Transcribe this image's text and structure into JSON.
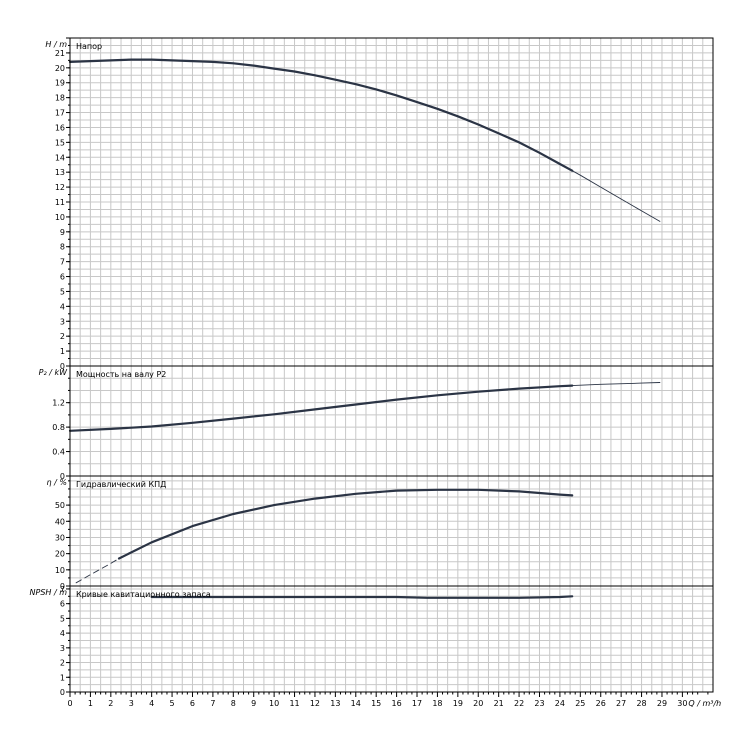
{
  "chart_data": {
    "type": "line",
    "x_axis": {
      "label": "Q / m³/h",
      "range": [
        0,
        31.5
      ],
      "tick_step": 1,
      "tick_max": 30
    },
    "colors": {
      "curve": "#2b3445",
      "grid": "#c8c8c8",
      "frame": "#000000"
    },
    "grid": true,
    "panels": [
      {
        "id": "head",
        "title": "Напор",
        "ylabel": "H / m",
        "ylim": [
          0,
          22
        ],
        "ytick_step": 1,
        "ytick_labels": [
          "0",
          "1",
          "2",
          "3",
          "4",
          "5",
          "6",
          "7",
          "8",
          "9",
          "10",
          "11",
          "12",
          "13",
          "14",
          "15",
          "16",
          "17",
          "18",
          "19",
          "20",
          "21"
        ],
        "series": [
          {
            "style": "bold",
            "x": [
              0,
              1,
              2,
              3,
              4,
              5,
              6,
              7,
              8,
              9,
              10,
              11,
              12,
              13,
              14,
              15,
              16,
              17,
              18,
              19,
              20,
              21,
              22,
              23,
              24,
              24.6
            ],
            "y": [
              20.4,
              20.45,
              20.5,
              20.55,
              20.55,
              20.5,
              20.45,
              20.4,
              20.3,
              20.15,
              19.95,
              19.75,
              19.5,
              19.2,
              18.9,
              18.55,
              18.15,
              17.7,
              17.25,
              16.75,
              16.2,
              15.6,
              15.0,
              14.3,
              13.55,
              13.1
            ]
          },
          {
            "style": "thin",
            "x": [
              24.6,
              25,
              26,
              27,
              28,
              28.9
            ],
            "y": [
              13.1,
              12.8,
              12.0,
              11.2,
              10.4,
              9.7
            ]
          }
        ]
      },
      {
        "id": "power",
        "title": "Мощность на валу P2",
        "ylabel": "P₂ / kW",
        "ylim": [
          0,
          1.8
        ],
        "ytick_values": [
          0,
          0.4,
          0.8,
          1.2
        ],
        "ytick_labels": [
          "0",
          "0.4",
          "0.8",
          "1.2"
        ],
        "series": [
          {
            "style": "bold",
            "x": [
              0,
              2,
              4,
              6,
              8,
              10,
              12,
              14,
              16,
              18,
              20,
              22,
              24,
              24.6
            ],
            "y": [
              0.74,
              0.77,
              0.81,
              0.87,
              0.94,
              1.01,
              1.09,
              1.17,
              1.25,
              1.32,
              1.38,
              1.43,
              1.47,
              1.48
            ]
          },
          {
            "style": "thin",
            "x": [
              24.6,
              26,
              28,
              28.9
            ],
            "y": [
              1.48,
              1.5,
              1.52,
              1.53
            ]
          }
        ]
      },
      {
        "id": "efficiency",
        "title": "Гидравлический КПД",
        "ylabel": "η / %",
        "ylim": [
          0,
          68
        ],
        "ytick_values": [
          0,
          10,
          20,
          30,
          40,
          50
        ],
        "ytick_labels": [
          "0",
          "10",
          "20",
          "30",
          "40",
          "50"
        ],
        "series": [
          {
            "style": "dashed",
            "x": [
              0.3,
              1,
              2,
              2.4
            ],
            "y": [
              2,
              7,
              14,
              17
            ]
          },
          {
            "style": "bold",
            "x": [
              2.4,
              4,
              6,
              8,
              10,
              12,
              14,
              16,
              18,
              20,
              22,
              23,
              24,
              24.6
            ],
            "y": [
              17,
              27,
              37,
              44.5,
              50,
              54,
              57,
              59,
              59.5,
              59.5,
              58.5,
              57.5,
              56.5,
              56
            ]
          }
        ]
      },
      {
        "id": "npsh",
        "title": "Кривые кавитационного запаса",
        "ylabel": "NPSH / m",
        "ylim": [
          0,
          7.2
        ],
        "ytick_step": 1,
        "ytick_labels": [
          "0",
          "1",
          "2",
          "3",
          "4",
          "5",
          "6",
          "7"
        ],
        "series": [
          {
            "style": "bold",
            "x": [
              4,
              8,
              12,
              16,
              17.5,
              20,
              22,
              24,
              24.6
            ],
            "y": [
              6.45,
              6.45,
              6.45,
              6.45,
              6.4,
              6.4,
              6.4,
              6.45,
              6.5
            ]
          }
        ]
      }
    ]
  }
}
